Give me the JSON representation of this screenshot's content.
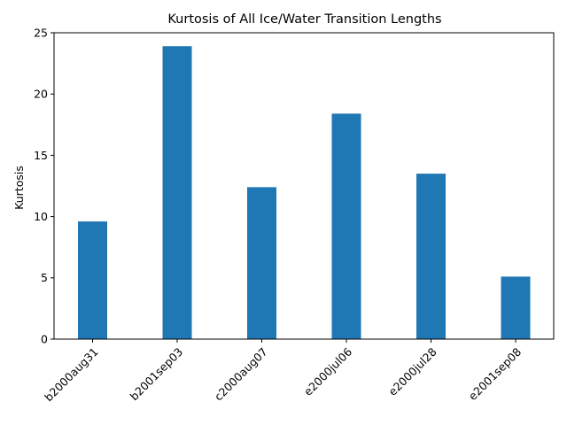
{
  "chart_data": {
    "type": "bar",
    "title": "Kurtosis of All Ice/Water Transition Lengths",
    "xlabel": "",
    "ylabel": "Kurtosis",
    "categories": [
      "b2000aug31",
      "b2001sep03",
      "c2000aug07",
      "e2000jul06",
      "e2000jul28",
      "e2001sep08"
    ],
    "values": [
      9.6,
      23.9,
      12.4,
      18.4,
      13.5,
      5.1
    ],
    "ylim": [
      0,
      25
    ],
    "yticks": [
      0,
      5,
      10,
      15,
      20,
      25
    ],
    "grid": false,
    "bar_color": "#1f77b4"
  }
}
